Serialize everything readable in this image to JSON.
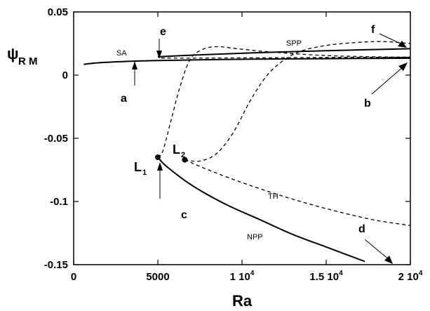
{
  "chart_data": {
    "type": "line",
    "xlabel": "Ra",
    "ylabel": {
      "main": "ψ",
      "sub": "R M"
    },
    "xlim": [
      0,
      20000
    ],
    "ylim": [
      -0.15,
      0.05
    ],
    "x_ticks": [
      {
        "value": 0,
        "label": "0",
        "sup": ""
      },
      {
        "value": 5000,
        "label": "5000",
        "sup": ""
      },
      {
        "value": 10000,
        "label": "1 10",
        "sup": "4"
      },
      {
        "value": 15000,
        "label": "1.5 10",
        "sup": "4"
      },
      {
        "value": 20000,
        "label": "2 10",
        "sup": "4"
      }
    ],
    "y_ticks": [
      {
        "value": 0.05,
        "label": "0.05"
      },
      {
        "value": 0,
        "label": "0"
      },
      {
        "value": -0.05,
        "label": "-0.05"
      },
      {
        "value": -0.1,
        "label": "-0.1"
      },
      {
        "value": -0.15,
        "label": "-0.15"
      }
    ],
    "series": [
      {
        "name": "SA",
        "style": "solid",
        "points": [
          [
            600,
            0.0085
          ],
          [
            1500,
            0.0098
          ],
          [
            3000,
            0.0108
          ],
          [
            5000,
            0.0115
          ],
          [
            8000,
            0.0122
          ],
          [
            12000,
            0.0128
          ],
          [
            16000,
            0.0131
          ],
          [
            20000,
            0.0134
          ]
        ]
      },
      {
        "name": "SPP",
        "style": "solid",
        "points": [
          [
            5000,
            0.0145
          ],
          [
            7000,
            0.0158
          ],
          [
            9000,
            0.0168
          ],
          [
            12000,
            0.0182
          ],
          [
            15000,
            0.0193
          ],
          [
            18000,
            0.0203
          ],
          [
            20000,
            0.0209
          ]
        ]
      },
      {
        "name": "NPP",
        "style": "solid",
        "points": [
          [
            5000,
            -0.065
          ],
          [
            5500,
            -0.072
          ],
          [
            7000,
            -0.087
          ],
          [
            9000,
            -0.102
          ],
          [
            11000,
            -0.114
          ],
          [
            13000,
            -0.126
          ],
          [
            15000,
            -0.136
          ],
          [
            17300,
            -0.1475
          ]
        ]
      },
      {
        "name": "TH",
        "style": "dashed",
        "points": [
          [
            6600,
            -0.067
          ],
          [
            8000,
            -0.075
          ],
          [
            10000,
            -0.085
          ],
          [
            12000,
            -0.094
          ],
          [
            14000,
            -0.102
          ],
          [
            16000,
            -0.109
          ],
          [
            18000,
            -0.115
          ],
          [
            20000,
            -0.119
          ]
        ]
      },
      {
        "name": "",
        "style": "dashed",
        "points": [
          [
            5000,
            -0.065
          ],
          [
            5300,
            -0.06
          ],
          [
            5800,
            -0.035
          ],
          [
            6300,
            -0.01
          ],
          [
            6900,
            0.012
          ],
          [
            7600,
            0.02
          ],
          [
            8500,
            0.0225
          ],
          [
            10000,
            0.0205
          ],
          [
            12000,
            0.018
          ],
          [
            15000,
            0.0155
          ],
          [
            18000,
            0.0145
          ],
          [
            20000,
            0.0142
          ]
        ]
      },
      {
        "name": "",
        "style": "dashed",
        "points": [
          [
            6600,
            -0.067
          ],
          [
            7500,
            -0.068
          ],
          [
            8500,
            -0.062
          ],
          [
            9500,
            -0.045
          ],
          [
            10500,
            -0.02
          ],
          [
            11500,
            0.0
          ],
          [
            12500,
            0.012
          ],
          [
            13500,
            0.019
          ],
          [
            15000,
            0.0235
          ],
          [
            17000,
            0.026
          ],
          [
            18500,
            0.0265
          ],
          [
            20000,
            0.025
          ]
        ]
      },
      {
        "name": "",
        "style": "dashed",
        "points": [
          [
            5200,
            0.0135
          ],
          [
            8000,
            0.0135
          ],
          [
            12000,
            0.0138
          ],
          [
            16000,
            0.014
          ],
          [
            20000,
            0.0142
          ]
        ]
      }
    ],
    "points": [
      {
        "label": "L",
        "sub": "1",
        "x": 5000,
        "y": -0.065
      },
      {
        "label": "L",
        "sub": "2",
        "x": 6600,
        "y": -0.067
      }
    ],
    "annotations": [
      "a",
      "b",
      "c",
      "d",
      "e",
      "f"
    ]
  }
}
